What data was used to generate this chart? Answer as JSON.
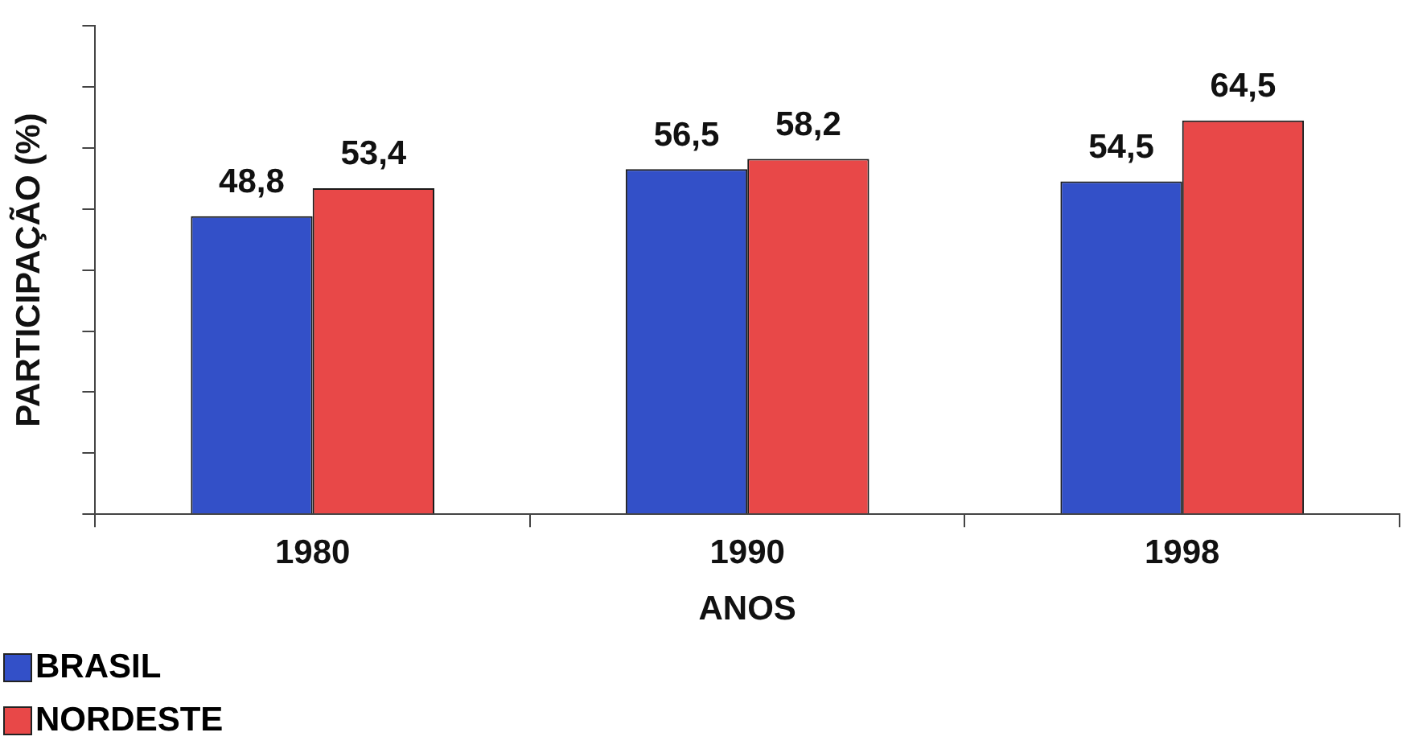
{
  "chart_data": {
    "type": "bar",
    "xlabel": "ANOS",
    "ylabel": "PARTICIPAÇÃO (%)",
    "categories": [
      "1980",
      "1990",
      "1998"
    ],
    "series": [
      {
        "name": "BRASIL",
        "color": "#3350c8",
        "values": [
          48.8,
          56.5,
          54.5
        ],
        "value_labels": [
          "48,8",
          "56,5",
          "54,5"
        ]
      },
      {
        "name": "NORDESTE",
        "color": "#e84848",
        "values": [
          53.4,
          58.2,
          64.5
        ],
        "value_labels": [
          "53,4",
          "58,2",
          "64,5"
        ]
      }
    ],
    "grid": false,
    "legend": "bottom left"
  }
}
